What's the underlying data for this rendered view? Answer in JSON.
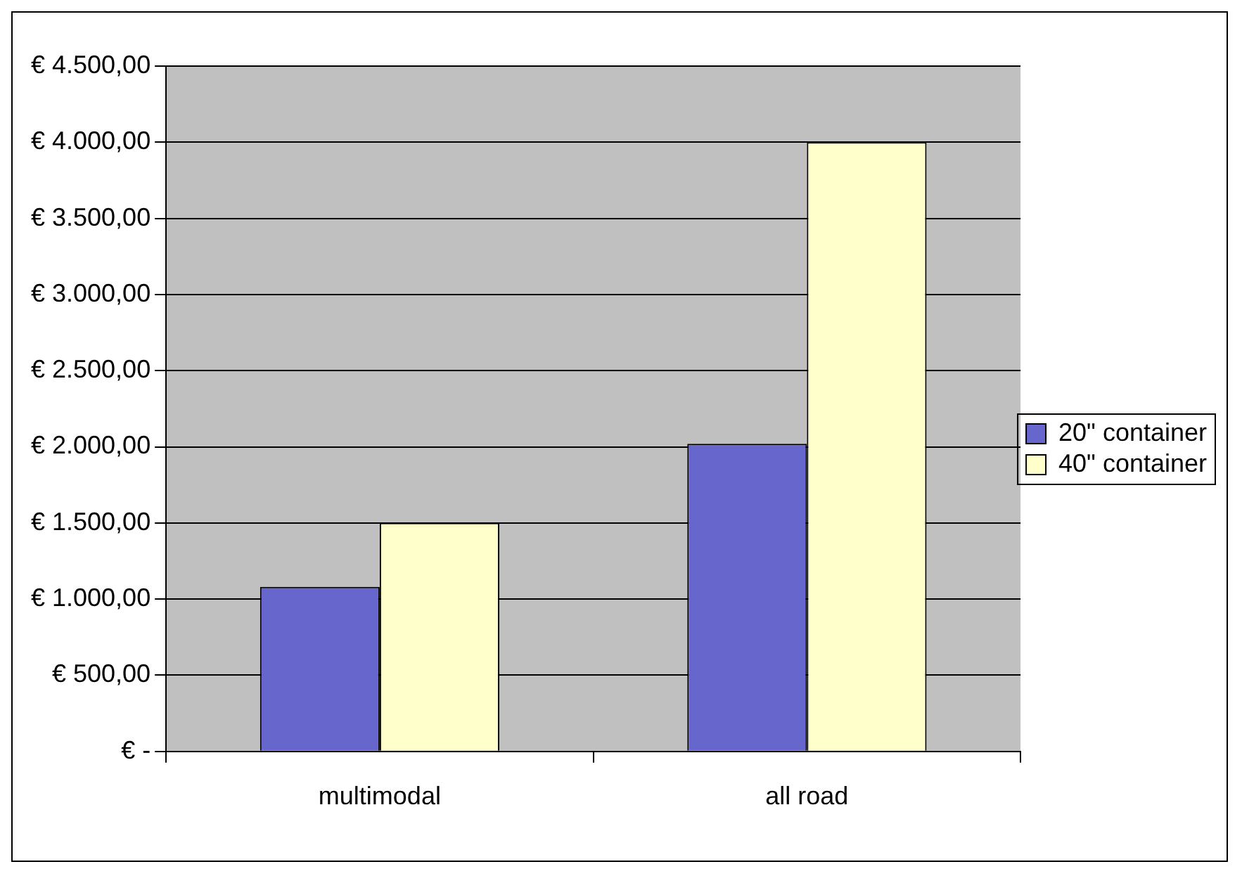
{
  "chart_data": {
    "type": "bar",
    "categories": [
      "multimodal",
      "all road"
    ],
    "series": [
      {
        "name": "20\" container",
        "color": "#6666cc",
        "values": [
          1080,
          2020
        ]
      },
      {
        "name": "40\" container",
        "color": "#ffffcc",
        "values": [
          1500,
          4000
        ]
      }
    ],
    "ylim": [
      0,
      4500
    ],
    "yticks": [
      {
        "value": 0,
        "label": "€ -"
      },
      {
        "value": 500,
        "label": "€ 500,00"
      },
      {
        "value": 1000,
        "label": "€ 1.000,00"
      },
      {
        "value": 1500,
        "label": "€ 1.500,00"
      },
      {
        "value": 2000,
        "label": "€ 2.000,00"
      },
      {
        "value": 2500,
        "label": "€ 2.500,00"
      },
      {
        "value": 3000,
        "label": "€ 3.000,00"
      },
      {
        "value": 3500,
        "label": "€ 3.500,00"
      },
      {
        "value": 4000,
        "label": "€ 4.000,00"
      },
      {
        "value": 4500,
        "label": "€ 4.500,00"
      }
    ],
    "grid": "y",
    "legend": "right"
  }
}
